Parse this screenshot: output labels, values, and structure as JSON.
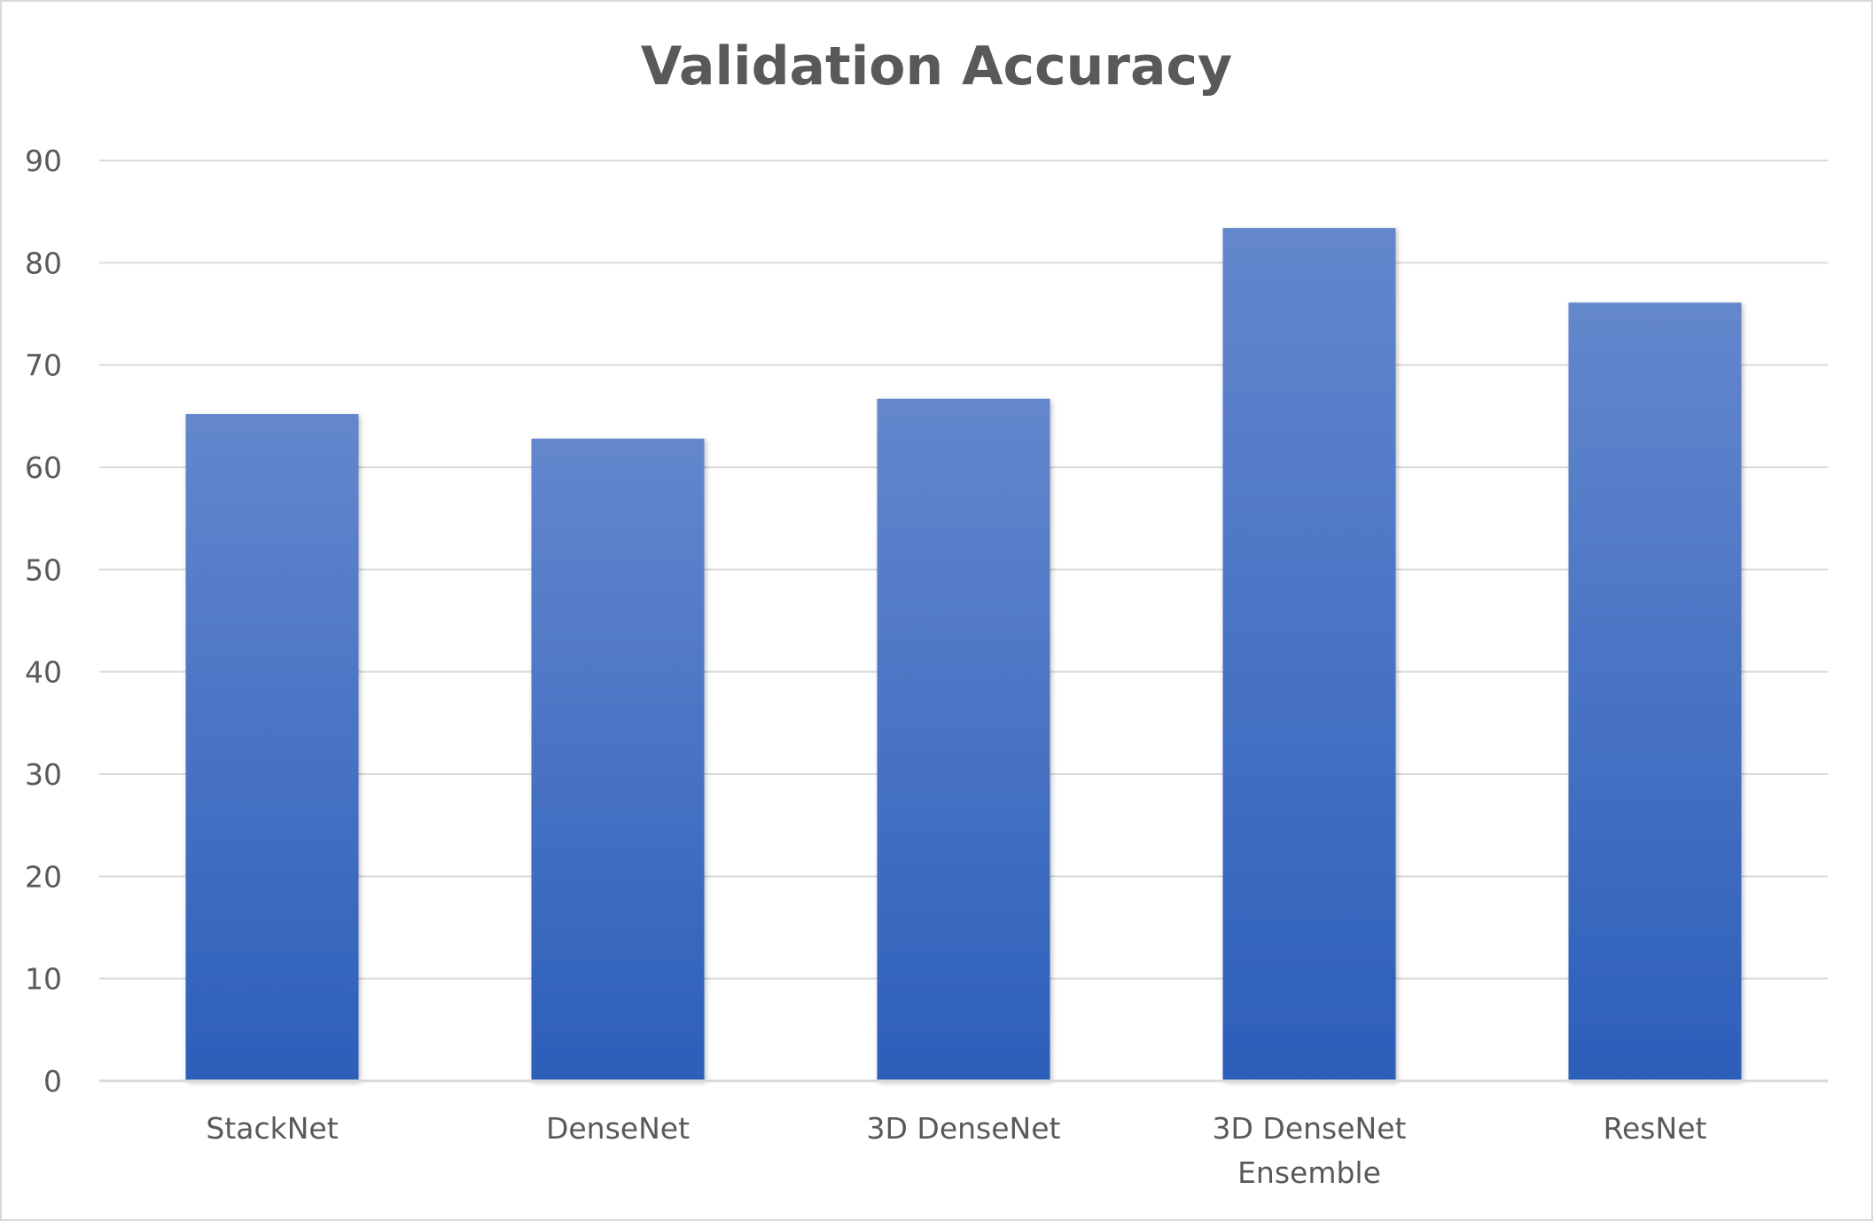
{
  "colors": {
    "bar_top": "#6487cd",
    "bar_bottom": "#2c5fba",
    "gridline": "#d9d9d9",
    "axis": "#d9d9d9",
    "text": "#595959"
  },
  "chart_data": {
    "type": "bar",
    "title": "Validation Accuracy",
    "xlabel": "",
    "ylabel": "",
    "categories": [
      [
        "StackNet"
      ],
      [
        "DenseNet"
      ],
      [
        "3D DenseNet"
      ],
      [
        "3D DenseNet",
        "Ensemble"
      ],
      [
        "ResNet"
      ]
    ],
    "series": [
      {
        "values": [
          65.2,
          62.8,
          66.7,
          83.4,
          76.1
        ]
      }
    ],
    "ylim": [
      0,
      90
    ],
    "yticks": [
      0,
      10,
      20,
      30,
      40,
      50,
      60,
      70,
      80,
      90
    ],
    "grid": true,
    "legend": "none"
  }
}
